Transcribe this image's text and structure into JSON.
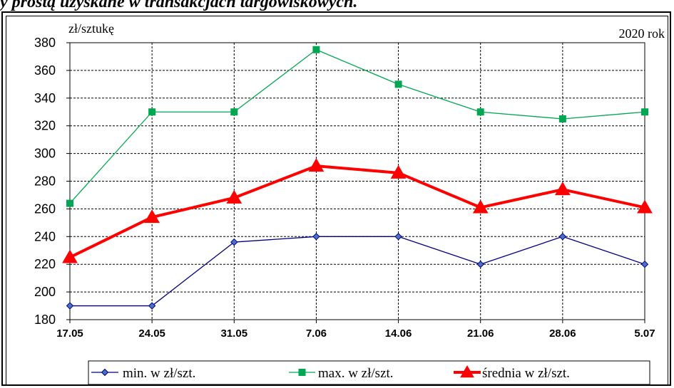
{
  "caption": "y prostą uzyskane w transakcjach targowiskowych.",
  "chart_data": {
    "type": "line",
    "ylabel": "zł/sztukę",
    "year_label": "2020 rok",
    "categories": [
      "17.05",
      "24.05",
      "31.05",
      "7.06",
      "14.06",
      "21.06",
      "28.06",
      "5.07"
    ],
    "ylim": [
      180,
      380
    ],
    "yticks": [
      180,
      200,
      220,
      240,
      260,
      280,
      300,
      320,
      340,
      360,
      380
    ],
    "grid": true,
    "legend_position": "bottom",
    "series": [
      {
        "name": "min. w zł/szt.",
        "color": "#000080",
        "marker": "diamond",
        "values": [
          190,
          190,
          236,
          240,
          240,
          220,
          240,
          220
        ]
      },
      {
        "name": "max. w zł/szt.",
        "color": "#00A651",
        "marker": "square",
        "values": [
          264,
          330,
          330,
          375,
          350,
          330,
          325,
          330
        ]
      },
      {
        "name": "średnia w zł/szt.",
        "color": "#FF0000",
        "marker": "triangle",
        "values": [
          225,
          254,
          268,
          291,
          286,
          261,
          274,
          261
        ]
      }
    ]
  }
}
